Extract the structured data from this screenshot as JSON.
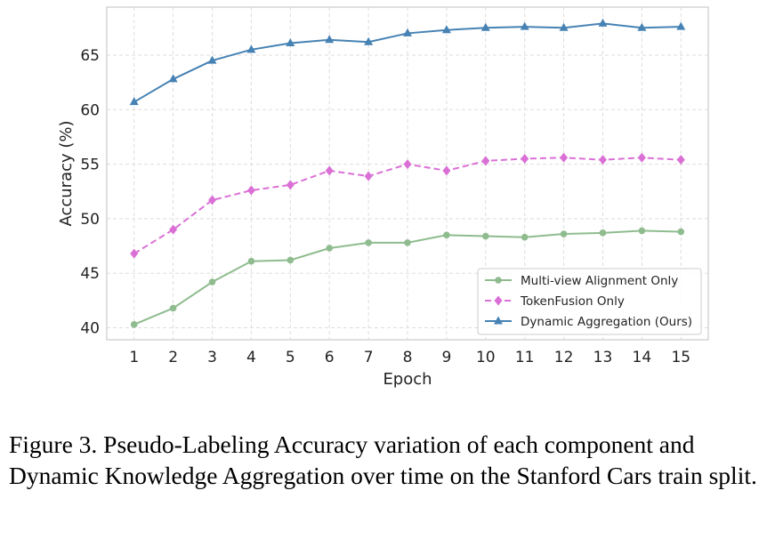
{
  "chart_data": {
    "type": "line",
    "xlabel": "Epoch",
    "ylabel": "Accuracy (%)",
    "x": [
      1,
      2,
      3,
      4,
      5,
      6,
      7,
      8,
      9,
      10,
      11,
      12,
      13,
      14,
      15
    ],
    "ylim": [
      38.9,
      69.4
    ],
    "xlim": [
      0.3,
      15.7
    ],
    "yticks": [
      40,
      45,
      50,
      55,
      60,
      65
    ],
    "grid": true,
    "legend_position": "lower-right",
    "series": [
      {
        "name": "Multi-view Alignment Only",
        "color": "#8fbc8f",
        "marker": "circle",
        "linestyle": "solid",
        "values": [
          40.3,
          41.8,
          44.2,
          46.1,
          46.2,
          47.3,
          47.8,
          47.8,
          48.5,
          48.4,
          48.3,
          48.6,
          48.7,
          48.9,
          48.8
        ]
      },
      {
        "name": "TokenFusion Only",
        "color": "#da70d6",
        "marker": "diamond",
        "linestyle": "dashed",
        "values": [
          46.8,
          49.0,
          51.7,
          52.6,
          53.1,
          54.4,
          53.9,
          55.0,
          54.4,
          55.3,
          55.5,
          55.6,
          55.4,
          55.6,
          55.4
        ]
      },
      {
        "name": "Dynamic Aggregation (Ours)",
        "color": "#4682b4",
        "marker": "triangle",
        "linestyle": "solid",
        "values": [
          60.7,
          62.8,
          64.5,
          65.5,
          66.1,
          66.4,
          66.2,
          67.0,
          67.3,
          67.5,
          67.6,
          67.5,
          67.9,
          67.5,
          67.6
        ]
      }
    ]
  },
  "caption": "Figure 3. Pseudo-Labeling Accuracy variation of each component and Dynamic Knowledge Aggregation over time on the Stanford Cars train split."
}
